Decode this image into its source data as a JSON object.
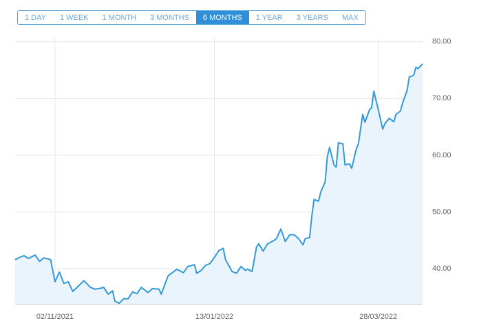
{
  "range_buttons": [
    "1 DAY",
    "1 WEEK",
    "1 MONTH",
    "3 MONTHS",
    "6 MONTHS",
    "1 YEAR",
    "3 YEARS",
    "MAX"
  ],
  "selected_range": "6 MONTHS",
  "chart_data": {
    "type": "area",
    "color": "#3399d6",
    "fill": "#e9f4fc",
    "grid": true,
    "y_axis_side": "right",
    "x": [
      "2021-10-15",
      "2021-10-17",
      "2021-10-19",
      "2021-10-21",
      "2021-10-24",
      "2021-10-26",
      "2021-10-28",
      "2021-10-31",
      "2021-11-02",
      "2021-11-04",
      "2021-11-06",
      "2021-11-08",
      "2021-11-10",
      "2021-11-13",
      "2021-11-15",
      "2021-11-18",
      "2021-11-20",
      "2021-11-22",
      "2021-11-24",
      "2021-11-26",
      "2021-11-28",
      "2021-11-29",
      "2021-12-01",
      "2021-12-03",
      "2021-12-05",
      "2021-12-07",
      "2021-12-09",
      "2021-12-11",
      "2021-12-14",
      "2021-12-16",
      "2021-12-19",
      "2021-12-20",
      "2021-12-23",
      "2021-12-25",
      "2021-12-27",
      "2021-12-28",
      "2021-12-30",
      "2022-01-01",
      "2022-01-04",
      "2022-01-05",
      "2022-01-07",
      "2022-01-09",
      "2022-01-11",
      "2022-01-13",
      "2022-01-15",
      "2022-01-17",
      "2022-01-18",
      "2022-01-21",
      "2022-01-23",
      "2022-01-25",
      "2022-01-27",
      "2022-01-28",
      "2022-01-30",
      "2022-02-01",
      "2022-02-02",
      "2022-02-04",
      "2022-02-06",
      "2022-02-09",
      "2022-02-10",
      "2022-02-12",
      "2022-02-14",
      "2022-02-16",
      "2022-02-18",
      "2022-02-20",
      "2022-02-22",
      "2022-02-23",
      "2022-02-25",
      "2022-02-26",
      "2022-02-27",
      "2022-03-01",
      "2022-03-02",
      "2022-03-04",
      "2022-03-05",
      "2022-03-06",
      "2022-03-08",
      "2022-03-09",
      "2022-03-10",
      "2022-03-12",
      "2022-03-13",
      "2022-03-15",
      "2022-03-16",
      "2022-03-18",
      "2022-03-19",
      "2022-03-21",
      "2022-03-22",
      "2022-03-24",
      "2022-03-25",
      "2022-03-26",
      "2022-03-28",
      "2022-03-30",
      "2022-03-31",
      "2022-04-02",
      "2022-04-04",
      "2022-04-05",
      "2022-04-07",
      "2022-04-08",
      "2022-04-10",
      "2022-04-11",
      "2022-04-13",
      "2022-04-14",
      "2022-04-15",
      "2022-04-17"
    ],
    "values": [
      41.6,
      42.0,
      42.3,
      41.8,
      42.4,
      41.3,
      41.9,
      41.6,
      37.7,
      39.4,
      37.4,
      37.7,
      36.0,
      37.1,
      37.9,
      36.7,
      36.4,
      36.5,
      36.7,
      35.5,
      36.1,
      34.3,
      33.9,
      34.7,
      34.7,
      35.9,
      35.6,
      36.7,
      35.8,
      36.5,
      36.4,
      35.5,
      38.7,
      39.3,
      39.9,
      39.7,
      39.3,
      40.4,
      40.7,
      39.2,
      39.7,
      40.6,
      40.9,
      42.0,
      43.2,
      43.6,
      41.6,
      39.5,
      39.2,
      40.4,
      39.7,
      39.9,
      39.5,
      43.8,
      44.4,
      43.1,
      44.4,
      45.0,
      45.3,
      47.0,
      44.8,
      46.0,
      46.0,
      45.3,
      44.2,
      45.3,
      45.5,
      49.3,
      52.2,
      51.9,
      53.5,
      55.3,
      59.8,
      61.4,
      58.3,
      57.9,
      62.2,
      62.0,
      58.3,
      58.5,
      57.7,
      61.0,
      62.0,
      67.2,
      65.8,
      68.0,
      68.4,
      71.3,
      68.0,
      64.6,
      65.6,
      66.5,
      65.9,
      67.2,
      67.8,
      69.2,
      71.4,
      73.8,
      74.1,
      75.5,
      75.3,
      76.1
    ],
    "xlim": [
      "2021-10-15",
      "2022-04-17"
    ],
    "xticks": [
      {
        "value": "2021-11-02",
        "label": "02/11/2021"
      },
      {
        "value": "2022-01-13",
        "label": "13/01/2022"
      },
      {
        "value": "2022-03-28",
        "label": "28/03/2022"
      }
    ],
    "ylim": [
      33.7,
      80.7
    ],
    "yticks": [
      {
        "value": 40,
        "label": "40.00"
      },
      {
        "value": 50,
        "label": "50.00"
      },
      {
        "value": 60,
        "label": "60.00"
      },
      {
        "value": 70,
        "label": "70.00"
      },
      {
        "value": 80,
        "label": "80.00"
      }
    ]
  }
}
